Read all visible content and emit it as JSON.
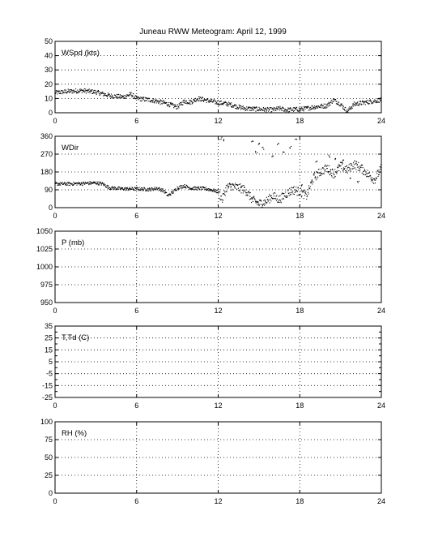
{
  "figure": {
    "title": "Juneau RWW Meteogram:      April 12, 1999"
  },
  "chart_data": [
    {
      "type": "scatter",
      "label": "WSpd (kts)",
      "xlim": [
        0,
        24
      ],
      "ylim": [
        0,
        50
      ],
      "xticks": [
        0,
        6,
        12,
        18,
        24
      ],
      "yticks": [
        0,
        10,
        20,
        30,
        40,
        50
      ],
      "grid": true,
      "trend": [
        [
          0,
          14
        ],
        [
          1,
          15
        ],
        [
          2,
          15.5
        ],
        [
          3,
          14.5
        ],
        [
          4,
          12
        ],
        [
          5,
          11
        ],
        [
          5.6,
          13
        ],
        [
          6,
          10
        ],
        [
          7,
          9
        ],
        [
          7.5,
          8
        ],
        [
          8,
          7
        ],
        [
          8.5,
          5.5
        ],
        [
          9,
          4
        ],
        [
          9.5,
          8
        ],
        [
          10,
          7.5
        ],
        [
          10.5,
          10
        ],
        [
          11,
          9
        ],
        [
          12,
          7
        ],
        [
          12.5,
          6.5
        ],
        [
          13,
          5.5
        ],
        [
          13.5,
          4
        ],
        [
          14,
          3
        ],
        [
          15,
          2.5
        ],
        [
          16,
          2
        ],
        [
          16.5,
          3
        ],
        [
          17,
          2
        ],
        [
          18,
          2.5
        ],
        [
          18.5,
          3
        ],
        [
          19,
          4
        ],
        [
          20,
          5
        ],
        [
          20.5,
          9
        ],
        [
          21,
          6
        ],
        [
          21.5,
          1
        ],
        [
          22,
          6
        ],
        [
          23,
          7.5
        ],
        [
          24,
          9
        ]
      ]
    },
    {
      "type": "scatter",
      "label": "WDir",
      "xlim": [
        0,
        24
      ],
      "ylim": [
        0,
        360
      ],
      "xticks": [
        0,
        6,
        12,
        18,
        24
      ],
      "yticks": [
        0,
        90,
        180,
        270,
        360
      ],
      "grid": true,
      "trend": [
        [
          0,
          120
        ],
        [
          1,
          120
        ],
        [
          2,
          122
        ],
        [
          3,
          125
        ],
        [
          3.5,
          120
        ],
        [
          4,
          100
        ],
        [
          5,
          95
        ],
        [
          6,
          95
        ],
        [
          7,
          92
        ],
        [
          7.5,
          98
        ],
        [
          8,
          85
        ],
        [
          8.3,
          60
        ],
        [
          8.7,
          80
        ],
        [
          9,
          100
        ],
        [
          9.5,
          110
        ],
        [
          10,
          98
        ],
        [
          11,
          96
        ],
        [
          11.5,
          90
        ],
        [
          12,
          80
        ],
        [
          12.3,
          40
        ],
        [
          12.6,
          100
        ],
        [
          13,
          110
        ],
        [
          13.5,
          100
        ],
        [
          14,
          90
        ],
        [
          14.5,
          40
        ],
        [
          15,
          20
        ],
        [
          15.5,
          30
        ],
        [
          16,
          60
        ],
        [
          16.5,
          40
        ],
        [
          17,
          70
        ],
        [
          17.5,
          90
        ],
        [
          18,
          80
        ],
        [
          18.5,
          60
        ],
        [
          19,
          150
        ],
        [
          19.5,
          180
        ],
        [
          20,
          200
        ],
        [
          20.5,
          170
        ],
        [
          21,
          210
        ],
        [
          21.5,
          190
        ],
        [
          22,
          220
        ],
        [
          22.5,
          200
        ],
        [
          23,
          170
        ],
        [
          23.5,
          140
        ],
        [
          24,
          200
        ]
      ],
      "scatter_extra": [
        [
          12.2,
          350
        ],
        [
          12.4,
          340
        ],
        [
          14.5,
          330
        ],
        [
          15,
          320
        ],
        [
          15.3,
          300
        ],
        [
          16,
          260
        ],
        [
          16.4,
          320
        ],
        [
          16.8,
          280
        ],
        [
          17.3,
          305
        ],
        [
          17.7,
          340
        ],
        [
          18.2,
          110
        ],
        [
          19.2,
          230
        ],
        [
          20.2,
          260
        ],
        [
          20.6,
          250
        ],
        [
          21.2,
          240
        ],
        [
          21.7,
          150
        ],
        [
          22.3,
          130
        ],
        [
          14.8,
          280
        ]
      ]
    },
    {
      "type": "line",
      "label": "P (mb)",
      "xlim": [
        0,
        24
      ],
      "ylim": [
        950,
        1050
      ],
      "xticks": [
        0,
        6,
        12,
        18,
        24
      ],
      "yticks": [
        950,
        975,
        1000,
        1025,
        1050
      ],
      "grid": true,
      "series": []
    },
    {
      "type": "line",
      "label": "T,Td (C)",
      "xlim": [
        0,
        24
      ],
      "ylim": [
        -25,
        35
      ],
      "xticks": [
        0,
        6,
        12,
        18,
        24
      ],
      "yticks": [
        -25,
        -15,
        -5,
        5,
        15,
        25,
        35
      ],
      "ytick_labels": [
        "-25",
        "-15",
        "-5",
        "5",
        "15",
        "25",
        "35"
      ],
      "minor_yticks": [
        -20,
        -10,
        0,
        10,
        20,
        30
      ],
      "grid": true,
      "series": []
    },
    {
      "type": "line",
      "label": "RH (%)",
      "xlim": [
        0,
        24
      ],
      "ylim": [
        0,
        100
      ],
      "xticks": [
        0,
        6,
        12,
        18,
        24
      ],
      "yticks": [
        0,
        25,
        50,
        75,
        100
      ],
      "grid": true,
      "series": []
    }
  ]
}
